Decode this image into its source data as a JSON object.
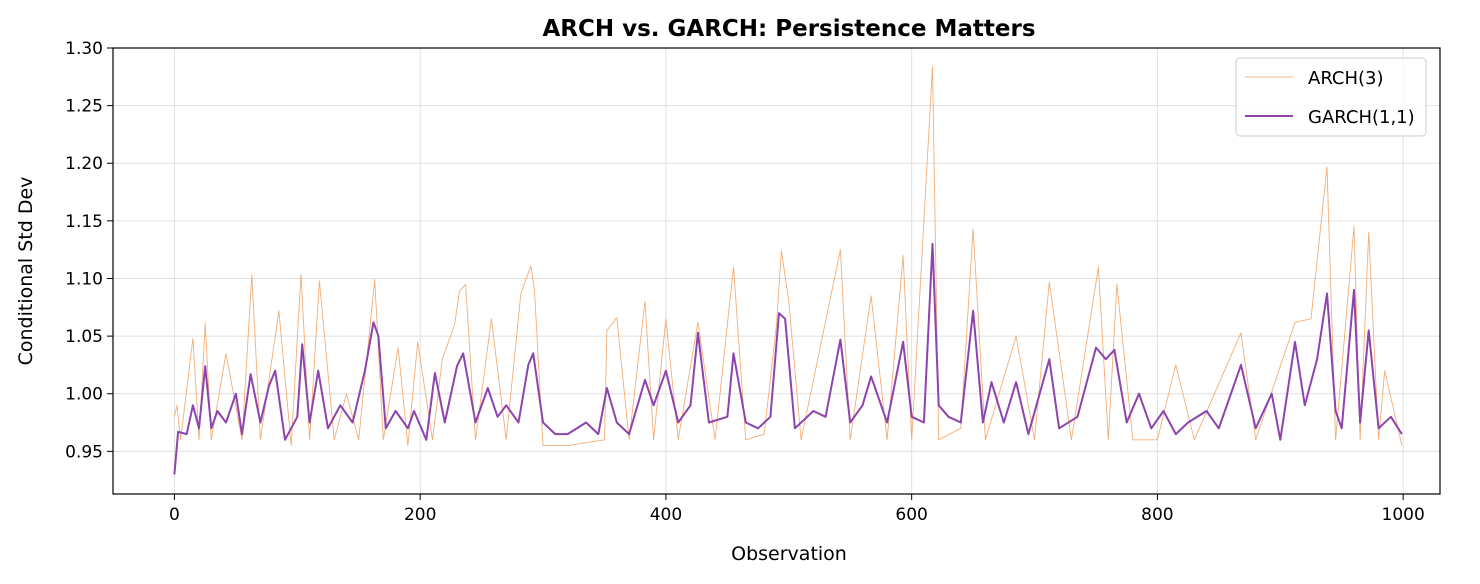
{
  "chart_data": {
    "type": "line",
    "title": "ARCH vs. GARCH: Persistence Matters",
    "xlabel": "Observation",
    "ylabel": "Conditional Std Dev",
    "xlim": [
      -50,
      1030
    ],
    "ylim": [
      0.913,
      1.3
    ],
    "xticks": [
      0,
      200,
      400,
      600,
      800,
      1000
    ],
    "xtick_labels": [
      "0",
      "200",
      "400",
      "600",
      "800",
      "1000"
    ],
    "yticks": [
      0.95,
      1.0,
      1.05,
      1.1,
      1.15,
      1.2,
      1.25,
      1.3
    ],
    "ytick_labels": [
      "0.95",
      "1.00",
      "1.05",
      "1.10",
      "1.15",
      "1.20",
      "1.25",
      "1.30"
    ],
    "grid": true,
    "legend_position": "top-right",
    "series": [
      {
        "name": "ARCH(3)",
        "color": "#f0a060",
        "x": [
          0,
          2,
          5,
          15,
          20,
          25,
          30,
          42,
          55,
          63,
          70,
          85,
          95,
          103,
          110,
          118,
          130,
          140,
          150,
          163,
          170,
          182,
          190,
          198,
          210,
          218,
          228,
          232,
          237,
          245,
          258,
          270,
          282,
          290,
          293,
          300,
          320,
          350,
          352,
          360,
          370,
          383,
          390,
          400,
          410,
          426,
          440,
          455,
          465,
          480,
          490,
          494,
          500,
          510,
          542,
          550,
          567,
          580,
          593,
          600,
          617,
          622,
          640,
          650,
          660,
          685,
          700,
          712,
          730,
          752,
          760,
          767,
          780,
          800,
          815,
          830,
          868,
          880,
          912,
          925,
          938,
          945,
          960,
          965,
          972,
          980,
          985,
          999
        ],
        "y": [
          0.98,
          0.99,
          0.96,
          1.048,
          0.96,
          1.061,
          0.96,
          1.035,
          0.96,
          1.103,
          0.96,
          1.072,
          0.955,
          1.104,
          0.96,
          1.098,
          0.96,
          1.0,
          0.96,
          1.099,
          0.96,
          1.04,
          0.955,
          1.045,
          0.96,
          1.03,
          1.06,
          1.089,
          1.095,
          0.96,
          1.065,
          0.96,
          1.087,
          1.111,
          1.091,
          0.955,
          0.955,
          0.96,
          1.055,
          1.066,
          0.96,
          1.08,
          0.96,
          1.065,
          0.96,
          1.062,
          0.96,
          1.11,
          0.96,
          0.965,
          1.06,
          1.124,
          1.08,
          0.96,
          1.125,
          0.96,
          1.085,
          0.96,
          1.12,
          0.96,
          1.284,
          0.96,
          0.97,
          1.143,
          0.96,
          1.05,
          0.96,
          1.097,
          0.96,
          1.11,
          0.96,
          1.095,
          0.96,
          0.96,
          1.025,
          0.96,
          1.053,
          0.96,
          1.062,
          1.065,
          1.197,
          0.96,
          1.145,
          0.96,
          1.14,
          0.96,
          1.02,
          0.955
        ]
      },
      {
        "name": "GARCH(1,1)",
        "color": "#8e44ad",
        "x": [
          0,
          3,
          10,
          15,
          20,
          25,
          30,
          35,
          42,
          50,
          55,
          62,
          70,
          77,
          82,
          90,
          100,
          104,
          110,
          117,
          125,
          135,
          145,
          155,
          162,
          166,
          172,
          180,
          190,
          195,
          205,
          212,
          220,
          230,
          235,
          245,
          255,
          263,
          270,
          280,
          288,
          292,
          300,
          310,
          320,
          335,
          345,
          352,
          360,
          370,
          383,
          390,
          400,
          410,
          420,
          426,
          435,
          450,
          455,
          465,
          475,
          485,
          492,
          497,
          505,
          520,
          530,
          542,
          550,
          560,
          567,
          580,
          593,
          600,
          610,
          617,
          622,
          630,
          640,
          650,
          658,
          665,
          675,
          685,
          695,
          712,
          720,
          735,
          750,
          758,
          765,
          775,
          785,
          795,
          805,
          815,
          825,
          840,
          850,
          868,
          880,
          893,
          900,
          912,
          920,
          930,
          938,
          945,
          950,
          960,
          965,
          972,
          980,
          990,
          999
        ],
        "y": [
          0.93,
          0.967,
          0.965,
          0.99,
          0.97,
          1.024,
          0.97,
          0.985,
          0.975,
          1.0,
          0.965,
          1.017,
          0.975,
          1.007,
          1.02,
          0.96,
          0.98,
          1.043,
          0.975,
          1.02,
          0.97,
          0.99,
          0.975,
          1.02,
          1.062,
          1.05,
          0.97,
          0.985,
          0.97,
          0.985,
          0.96,
          1.018,
          0.975,
          1.024,
          1.035,
          0.975,
          1.005,
          0.98,
          0.99,
          0.975,
          1.025,
          1.035,
          0.975,
          0.965,
          0.965,
          0.975,
          0.965,
          1.005,
          0.975,
          0.965,
          1.012,
          0.99,
          1.02,
          0.975,
          0.99,
          1.053,
          0.975,
          0.98,
          1.035,
          0.975,
          0.97,
          0.98,
          1.07,
          1.065,
          0.97,
          0.985,
          0.98,
          1.047,
          0.975,
          0.99,
          1.015,
          0.975,
          1.045,
          0.98,
          0.975,
          1.13,
          0.99,
          0.98,
          0.975,
          1.072,
          0.975,
          1.01,
          0.975,
          1.01,
          0.965,
          1.03,
          0.97,
          0.98,
          1.04,
          1.03,
          1.038,
          0.975,
          1.0,
          0.97,
          0.985,
          0.965,
          0.975,
          0.985,
          0.97,
          1.025,
          0.97,
          1.0,
          0.96,
          1.045,
          0.99,
          1.03,
          1.087,
          0.985,
          0.97,
          1.09,
          0.975,
          1.055,
          0.97,
          0.98,
          0.965
        ]
      }
    ]
  }
}
